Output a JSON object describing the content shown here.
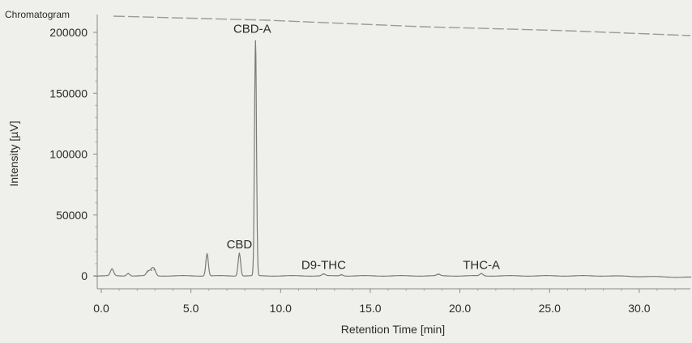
{
  "chart_data": {
    "type": "line",
    "title": "Chromatogram",
    "xlabel": "Retention Time [min]",
    "ylabel": "Intensity [µV]",
    "xlim": [
      -0.7,
      32.9
    ],
    "ylim": [
      -3000,
      203000
    ],
    "x_ticks": [
      0,
      5,
      10,
      15,
      20,
      25,
      30
    ],
    "x_tick_labels": [
      "0.0",
      "5.0",
      "10.0",
      "15.0",
      "20.0",
      "25.0",
      "30.0"
    ],
    "y_ticks": [
      0,
      50000,
      100000,
      150000,
      200000
    ],
    "y_tick_labels": [
      "0",
      "50000",
      "100000",
      "150000",
      "200000"
    ],
    "grid": false,
    "legend": "none",
    "baseline": 0,
    "peaks": [
      {
        "x": 0.6,
        "y": 5500,
        "label": ""
      },
      {
        "x": 1.5,
        "y": 2000,
        "label": ""
      },
      {
        "x": 2.6,
        "y": 3500,
        "label": ""
      },
      {
        "x": 2.8,
        "y": 4500,
        "label": ""
      },
      {
        "x": 2.95,
        "y": 5000,
        "label": ""
      },
      {
        "x": 5.9,
        "y": 18000,
        "label": ""
      },
      {
        "x": 7.7,
        "y": 18500,
        "label": "CBD"
      },
      {
        "x": 8.6,
        "y": 193000,
        "label": "CBD-A"
      },
      {
        "x": 12.4,
        "y": 1500,
        "label": "D9-THC"
      },
      {
        "x": 13.4,
        "y": 1000,
        "label": ""
      },
      {
        "x": 18.8,
        "y": 1200,
        "label": ""
      },
      {
        "x": 21.2,
        "y": 1800,
        "label": "THC-A"
      }
    ],
    "series": [
      {
        "name": "",
        "color": "#7a7a7a"
      }
    ]
  }
}
